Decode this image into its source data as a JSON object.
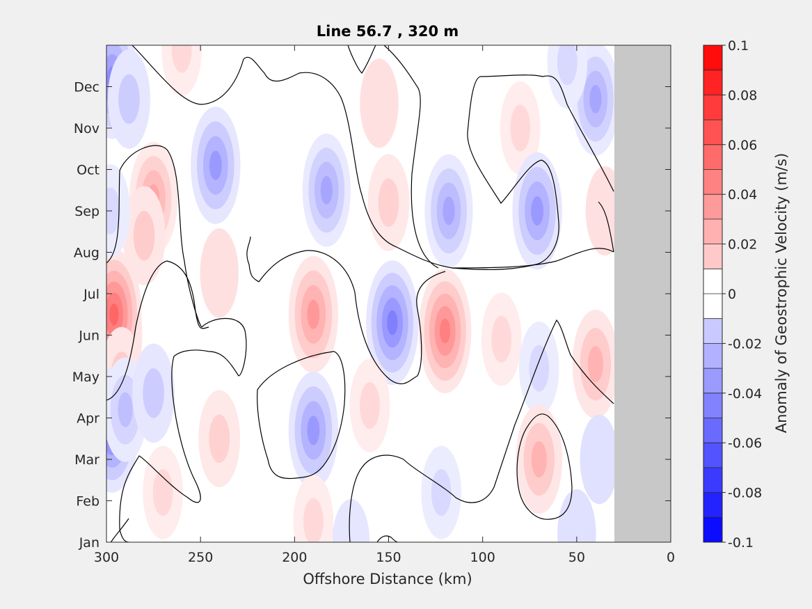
{
  "chart_data": {
    "type": "heatmap",
    "title": "Line 56.7 , 320 m",
    "xlabel": "Offshore Distance (km)",
    "ylabel": "",
    "xlim": [
      300,
      0
    ],
    "x_reversed": true,
    "x_ticks": [
      "300",
      "250",
      "200",
      "150",
      "100",
      "50",
      "0"
    ],
    "y_ticks": [
      "Jan",
      "Feb",
      "Mar",
      "Apr",
      "May",
      "Jun",
      "Jul",
      "Aug",
      "Sep",
      "Oct",
      "Nov",
      "Dec"
    ],
    "no_data_region_km": [
      0,
      30
    ],
    "colorbar": {
      "label": "Anomaly of Geostrophic Velocity (m/s)",
      "limits": [
        -0.1,
        0.1
      ],
      "ticks": [
        "0.1",
        "0.08",
        "0.06",
        "0.04",
        "0.02",
        "0",
        "-0.02",
        "-0.04",
        "-0.06",
        "-0.08",
        "-0.1"
      ],
      "levels": 20,
      "positive_color": "#ff0000",
      "negative_color": "#0000ff",
      "neutral_color": "#ffffff"
    },
    "zero_contour_color": "#000000",
    "grid": false,
    "features": [
      {
        "x_km": 298,
        "month": 6.0,
        "value": 0.1
      },
      {
        "x_km": 296,
        "month": 6.5,
        "value": 0.06
      },
      {
        "x_km": 292,
        "month": 5.0,
        "value": 0.02
      },
      {
        "x_km": 275,
        "month": 9.3,
        "value": 0.035
      },
      {
        "x_km": 280,
        "month": 8.4,
        "value": 0.02
      },
      {
        "x_km": 297,
        "month": 3.7,
        "value": -0.05
      },
      {
        "x_km": 290,
        "month": 4.2,
        "value": -0.025
      },
      {
        "x_km": 275,
        "month": 4.6,
        "value": -0.02
      },
      {
        "x_km": 297,
        "month": 12.2,
        "value": -0.045
      },
      {
        "x_km": 288,
        "month": 11.7,
        "value": -0.02
      },
      {
        "x_km": 298,
        "month": 9.0,
        "value": -0.015
      },
      {
        "x_km": 242,
        "month": 10.1,
        "value": -0.04
      },
      {
        "x_km": 270,
        "month": 2.2,
        "value": 0.015
      },
      {
        "x_km": 260,
        "month": 12.9,
        "value": 0.015
      },
      {
        "x_km": 240,
        "month": 7.5,
        "value": 0.012
      },
      {
        "x_km": 240,
        "month": 3.5,
        "value": 0.018
      },
      {
        "x_km": 190,
        "month": 6.5,
        "value": 0.04
      },
      {
        "x_km": 183,
        "month": 9.5,
        "value": -0.035
      },
      {
        "x_km": 190,
        "month": 3.7,
        "value": -0.04
      },
      {
        "x_km": 190,
        "month": 1.5,
        "value": 0.015
      },
      {
        "x_km": 148,
        "month": 6.3,
        "value": -0.05
      },
      {
        "x_km": 120,
        "month": 6.1,
        "value": 0.05
      },
      {
        "x_km": 160,
        "month": 4.3,
        "value": 0.015
      },
      {
        "x_km": 150,
        "month": 9.2,
        "value": 0.018
      },
      {
        "x_km": 118,
        "month": 9.0,
        "value": -0.035
      },
      {
        "x_km": 80,
        "month": 11.0,
        "value": 0.015
      },
      {
        "x_km": 155,
        "month": 11.6,
        "value": 0.012
      },
      {
        "x_km": 122,
        "month": 2.2,
        "value": -0.015
      },
      {
        "x_km": 71,
        "month": 9.0,
        "value": -0.04
      },
      {
        "x_km": 90,
        "month": 5.9,
        "value": 0.015
      },
      {
        "x_km": 40,
        "month": 5.3,
        "value": 0.03
      },
      {
        "x_km": 70,
        "month": 5.2,
        "value": -0.015
      },
      {
        "x_km": 70,
        "month": 3.0,
        "value": 0.03
      },
      {
        "x_km": 40,
        "month": 11.7,
        "value": -0.035
      },
      {
        "x_km": 55,
        "month": 12.6,
        "value": -0.015
      },
      {
        "x_km": 35,
        "month": 9.0,
        "value": 0.012
      },
      {
        "x_km": 50,
        "month": 1.2,
        "value": -0.012
      },
      {
        "x_km": 38,
        "month": 3.0,
        "value": -0.012
      },
      {
        "x_km": 170,
        "month": 1.0,
        "value": -0.01
      }
    ]
  }
}
